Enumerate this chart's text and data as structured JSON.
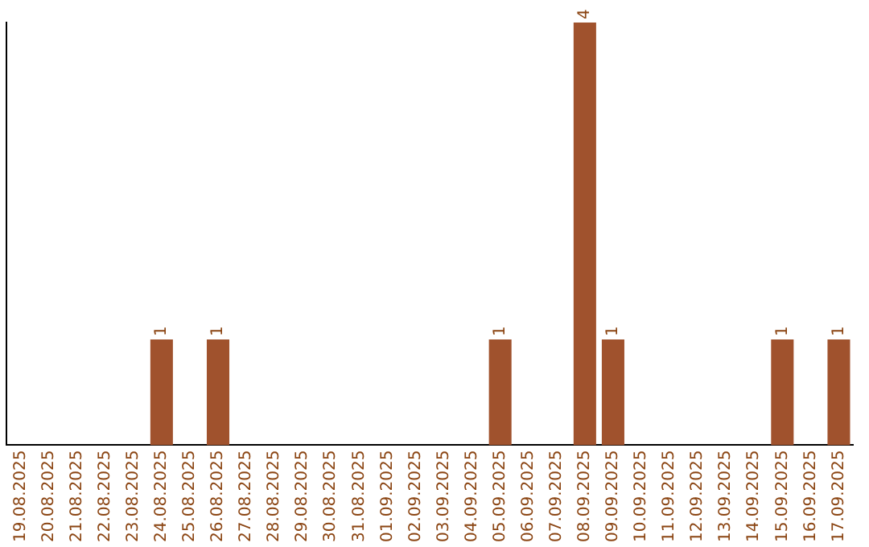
{
  "chart_data": {
    "type": "bar",
    "categories": [
      "19.08.2025",
      "20.08.2025",
      "21.08.2025",
      "22.08.2025",
      "23.08.2025",
      "24.08.2025",
      "25.08.2025",
      "26.08.2025",
      "27.08.2025",
      "28.08.2025",
      "29.08.2025",
      "30.08.2025",
      "31.08.2025",
      "01.09.2025",
      "02.09.2025",
      "03.09.2025",
      "04.09.2025",
      "05.09.2025",
      "06.09.2025",
      "07.09.2025",
      "08.09.2025",
      "09.09.2025",
      "10.09.2025",
      "11.09.2025",
      "12.09.2025",
      "13.09.2025",
      "14.09.2025",
      "15.09.2025",
      "16.09.2025",
      "17.09.2025"
    ],
    "values": [
      0,
      0,
      0,
      0,
      0,
      1,
      0,
      1,
      0,
      0,
      0,
      0,
      0,
      0,
      0,
      0,
      0,
      1,
      0,
      0,
      4,
      1,
      0,
      0,
      0,
      0,
      0,
      1,
      0,
      1
    ],
    "value_labels": [
      null,
      null,
      null,
      null,
      null,
      "1",
      null,
      "1",
      null,
      null,
      null,
      null,
      null,
      null,
      null,
      null,
      null,
      "1",
      null,
      null,
      "4",
      "1",
      null,
      null,
      null,
      null,
      null,
      "1",
      null,
      "1"
    ],
    "color": "#a0522d",
    "grid": false,
    "legend": false,
    "tick_labels": "x"
  }
}
